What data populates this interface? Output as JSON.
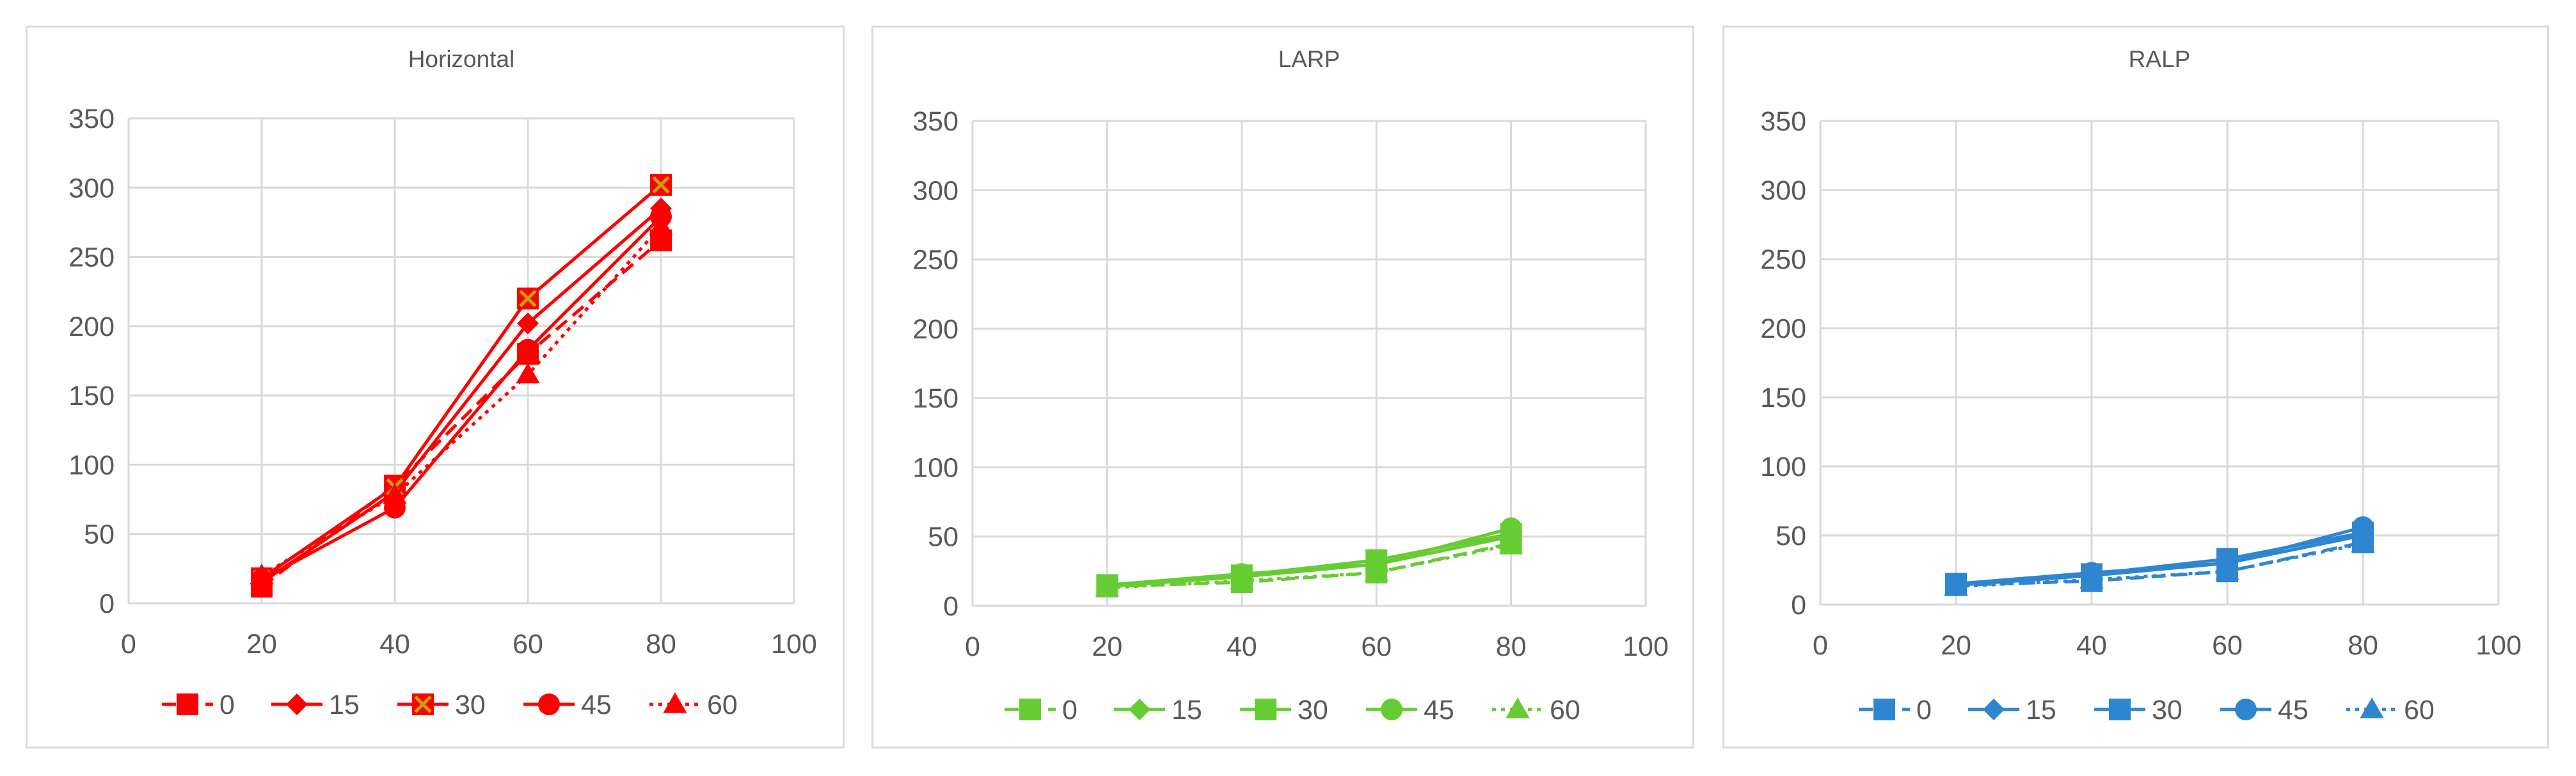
{
  "chart_data": [
    {
      "type": "line",
      "title": "Horizontal",
      "color": "#ff0000",
      "xlim": [
        0,
        100
      ],
      "ylim": [
        0,
        350
      ],
      "xticks": [
        "0",
        "20",
        "40",
        "60",
        "80",
        "100"
      ],
      "yticks": [
        "0",
        "50",
        "100",
        "150",
        "200",
        "250",
        "300",
        "350"
      ],
      "grid": true,
      "legend_position": "bottom",
      "x": [
        20,
        40,
        60,
        80
      ],
      "series": [
        {
          "name": "0",
          "marker": "square",
          "dash": "dash",
          "values": [
            12,
            85,
            180,
            262
          ]
        },
        {
          "name": "15",
          "marker": "diamond",
          "dash": "solid",
          "values": [
            15,
            80,
            202,
            285
          ]
        },
        {
          "name": "30",
          "marker": "square-x",
          "dash": "solid",
          "values": [
            18,
            84,
            220,
            302
          ]
        },
        {
          "name": "45",
          "marker": "circle",
          "dash": "solid",
          "values": [
            17,
            69,
            183,
            279
          ]
        },
        {
          "name": "60",
          "marker": "triangle",
          "dash": "dot",
          "values": [
            20,
            78,
            165,
            272
          ]
        }
      ]
    },
    {
      "type": "line",
      "title": "LARP",
      "color": "#66cc33",
      "xlim": [
        0,
        100
      ],
      "ylim": [
        0,
        350
      ],
      "xticks": [
        "0",
        "20",
        "40",
        "60",
        "80",
        "100"
      ],
      "yticks": [
        "0",
        "50",
        "100",
        "150",
        "200",
        "250",
        "300",
        "350"
      ],
      "grid": true,
      "legend_position": "bottom",
      "x": [
        20,
        40,
        60,
        80
      ],
      "series": [
        {
          "name": "0",
          "marker": "square",
          "dash": "dash",
          "values": [
            14,
            17,
            24,
            45
          ]
        },
        {
          "name": "15",
          "marker": "diamond",
          "dash": "solid",
          "values": [
            14,
            21,
            30,
            50
          ]
        },
        {
          "name": "30",
          "marker": "square",
          "dash": "solid",
          "values": [
            15,
            22,
            33,
            52
          ]
        },
        {
          "name": "45",
          "marker": "circle",
          "dash": "solid",
          "values": [
            15,
            23,
            30,
            56
          ]
        },
        {
          "name": "60",
          "marker": "triangle",
          "dash": "dot",
          "values": [
            13,
            18,
            24,
            44
          ]
        }
      ]
    },
    {
      "type": "line",
      "title": "RALP",
      "color": "#2e86d0",
      "xlim": [
        0,
        100
      ],
      "ylim": [
        0,
        350
      ],
      "xticks": [
        "0",
        "20",
        "40",
        "60",
        "80",
        "100"
      ],
      "yticks": [
        "0",
        "50",
        "100",
        "150",
        "200",
        "250",
        "300",
        "350"
      ],
      "grid": true,
      "legend_position": "bottom",
      "x": [
        20,
        40,
        60,
        80
      ],
      "series": [
        {
          "name": "0",
          "marker": "square",
          "dash": "dash",
          "values": [
            14,
            17,
            24,
            45
          ]
        },
        {
          "name": "15",
          "marker": "diamond",
          "dash": "solid",
          "values": [
            14,
            21,
            30,
            50
          ]
        },
        {
          "name": "30",
          "marker": "square",
          "dash": "solid",
          "values": [
            15,
            22,
            33,
            52
          ]
        },
        {
          "name": "45",
          "marker": "circle",
          "dash": "solid",
          "values": [
            15,
            23,
            30,
            56
          ]
        },
        {
          "name": "60",
          "marker": "triangle",
          "dash": "dot",
          "values": [
            13,
            18,
            24,
            44
          ]
        }
      ]
    }
  ]
}
